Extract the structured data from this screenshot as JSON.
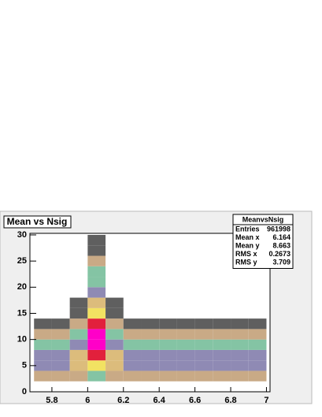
{
  "chart_data": {
    "type": "heatmap",
    "title": "Mean vs Nsig",
    "xbins": [
      5.7,
      5.8,
      5.9,
      6.0,
      6.1,
      6.2,
      6.3,
      6.4,
      6.5,
      6.6,
      6.7,
      6.8,
      6.9,
      7.0
    ],
    "ybins": [
      0,
      2,
      4,
      6,
      8,
      10,
      12,
      14,
      16,
      18,
      20,
      22,
      24,
      26,
      28,
      30
    ],
    "z": [
      [
        0,
        0,
        0,
        0,
        0,
        0,
        0,
        0,
        0,
        0,
        0,
        0,
        0
      ],
      [
        2,
        2,
        2,
        3,
        2,
        2,
        2,
        2,
        2,
        2,
        2,
        2,
        2
      ],
      [
        4,
        4,
        5,
        6,
        5,
        4,
        4,
        4,
        4,
        4,
        4,
        4,
        4
      ],
      [
        4,
        4,
        5,
        7,
        5,
        4,
        4,
        4,
        4,
        4,
        4,
        4,
        4
      ],
      [
        3,
        3,
        4,
        8,
        4,
        3,
        3,
        3,
        3,
        3,
        3,
        3,
        3
      ],
      [
        2,
        2,
        3,
        8,
        3,
        2,
        2,
        2,
        2,
        2,
        2,
        2,
        2
      ],
      [
        1,
        1,
        2,
        7,
        2,
        1,
        1,
        1,
        1,
        1,
        1,
        1,
        1
      ],
      [
        0,
        0,
        1,
        6,
        1,
        0,
        0,
        0,
        0,
        0,
        0,
        0,
        0
      ],
      [
        0,
        0,
        1,
        5,
        1,
        0,
        0,
        0,
        0,
        0,
        0,
        0,
        0
      ],
      [
        0,
        0,
        0,
        4,
        0,
        0,
        0,
        0,
        0,
        0,
        0,
        0,
        0
      ],
      [
        0,
        0,
        0,
        3,
        0,
        0,
        0,
        0,
        0,
        0,
        0,
        0,
        0
      ],
      [
        0,
        0,
        0,
        3,
        0,
        0,
        0,
        0,
        0,
        0,
        0,
        0,
        0
      ],
      [
        0,
        0,
        0,
        2,
        0,
        0,
        0,
        0,
        0,
        0,
        0,
        0,
        0
      ],
      [
        0,
        0,
        0,
        1,
        0,
        0,
        0,
        0,
        0,
        0,
        0,
        0,
        0
      ],
      [
        0,
        0,
        0,
        1,
        0,
        0,
        0,
        0,
        0,
        0,
        0,
        0,
        0
      ]
    ],
    "palette": [
      "#ffffff",
      "#5f5f5f",
      "#c9aa86",
      "#84c4a4",
      "#8f8ab4",
      "#dcbc7c",
      "#f2e262",
      "#e2203c",
      "#ff00c8"
    ],
    "xlim": [
      5.677,
      7.02
    ],
    "ylim": [
      0,
      30.3
    ],
    "xticks": [
      5.8,
      6,
      6.2,
      6.4,
      6.6,
      6.8,
      7
    ],
    "yticks": [
      0,
      5,
      10,
      15,
      20,
      25,
      30
    ],
    "stats": {
      "title": "MeanvsNsig",
      "rows": [
        [
          "Entries",
          961998
        ],
        [
          "Mean x",
          6.164
        ],
        [
          "Mean y",
          8.663
        ],
        [
          "RMS x",
          0.2673
        ],
        [
          "RMS y",
          3.709
        ]
      ]
    }
  }
}
